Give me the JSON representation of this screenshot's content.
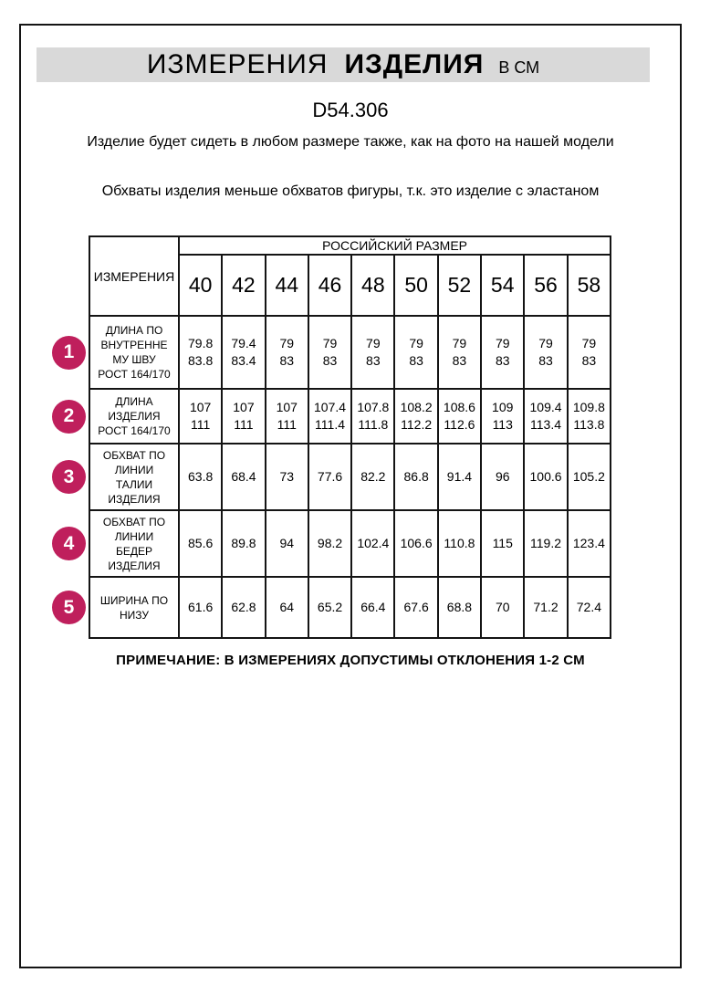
{
  "header": {
    "title_main": "ИЗМЕРЕНИЯ",
    "title_bold": "ИЗДЕЛИЯ",
    "title_unit": "В СМ"
  },
  "model_code": "D54.306",
  "intro": {
    "line1": "Изделие будет сидеть в любом размере также, как на фото на нашей модели",
    "line2": "Обхваты изделия меньше обхватов фигуры, т.к. это изделие с эластаном"
  },
  "table": {
    "measurements_header": "ИЗМЕРЕНИЯ",
    "size_group_header": "РОССИЙСКИЙ РАЗМЕР",
    "sizes": [
      "40",
      "42",
      "44",
      "46",
      "48",
      "50",
      "52",
      "54",
      "56",
      "58"
    ],
    "rows": [
      {
        "num": "1",
        "label": "ДЛИНА ПО\nВНУТРЕННЕ\nМУ ШВУ\nРОСТ 164/170",
        "values": [
          "79.8\n83.8",
          "79.4\n83.4",
          "79\n83",
          "79\n83",
          "79\n83",
          "79\n83",
          "79\n83",
          "79\n83",
          "79\n83",
          "79\n83"
        ]
      },
      {
        "num": "2",
        "label": "ДЛИНА\nИЗДЕЛИЯ\nРОСТ 164/170",
        "values": [
          "107\n111",
          "107\n111",
          "107\n111",
          "107.4\n111.4",
          "107.8\n111.8",
          "108.2\n112.2",
          "108.6\n112.6",
          "109\n113",
          "109.4\n113.4",
          "109.8\n113.8"
        ]
      },
      {
        "num": "3",
        "label": "ОБХВАТ ПО\nЛИНИИ\nТАЛИИ\nИЗДЕЛИЯ",
        "values": [
          "63.8",
          "68.4",
          "73",
          "77.6",
          "82.2",
          "86.8",
          "91.4",
          "96",
          "100.6",
          "105.2"
        ]
      },
      {
        "num": "4",
        "label": "ОБХВАТ ПО\nЛИНИИ\nБЕДЕР\nИЗДЕЛИЯ",
        "values": [
          "85.6",
          "89.8",
          "94",
          "98.2",
          "102.4",
          "106.6",
          "110.8",
          "115",
          "119.2",
          "123.4"
        ]
      },
      {
        "num": "5",
        "label": "ШИРИНА ПО\nНИЗУ",
        "values": [
          "61.6",
          "62.8",
          "64",
          "65.2",
          "66.4",
          "67.6",
          "68.8",
          "70",
          "71.2",
          "72.4"
        ]
      }
    ]
  },
  "note": "ПРИМЕЧАНИЕ: В ИЗМЕРЕНИЯХ ДОПУСТИМЫ ОТКЛОНЕНИЯ 1-2 СМ",
  "colors": {
    "accent": "#bf1f5c",
    "header_bg": "#d9d9d9",
    "border": "#141414"
  }
}
